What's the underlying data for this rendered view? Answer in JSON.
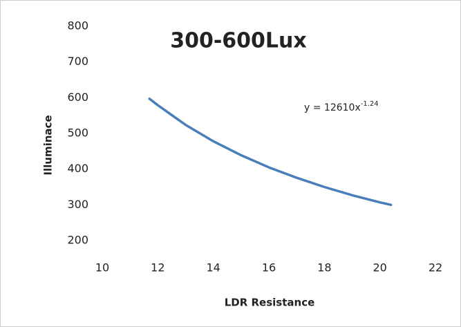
{
  "chart_data": {
    "type": "line",
    "title": "300-600Lux",
    "x_label": "LDR Resistance",
    "y_label": "Illuminace",
    "annotation": {
      "base": "y = 12610x",
      "exponent": "-1.24"
    },
    "series": [
      {
        "name": "Illuminace",
        "color": "#4a7ebb",
        "x": [
          11.7,
          12,
          13,
          14,
          15,
          16,
          17,
          18,
          19,
          20,
          20.4
        ],
        "values": [
          597,
          579,
          524,
          478,
          439,
          405,
          376,
          350,
          327,
          307,
          300
        ]
      }
    ],
    "xlim": [
      10,
      22
    ],
    "xticks": [
      10,
      12,
      14,
      16,
      18,
      20,
      22
    ],
    "ylim": [
      200,
      800
    ],
    "yticks": [
      200,
      300,
      400,
      500,
      600,
      700,
      800
    ],
    "grid": false
  }
}
